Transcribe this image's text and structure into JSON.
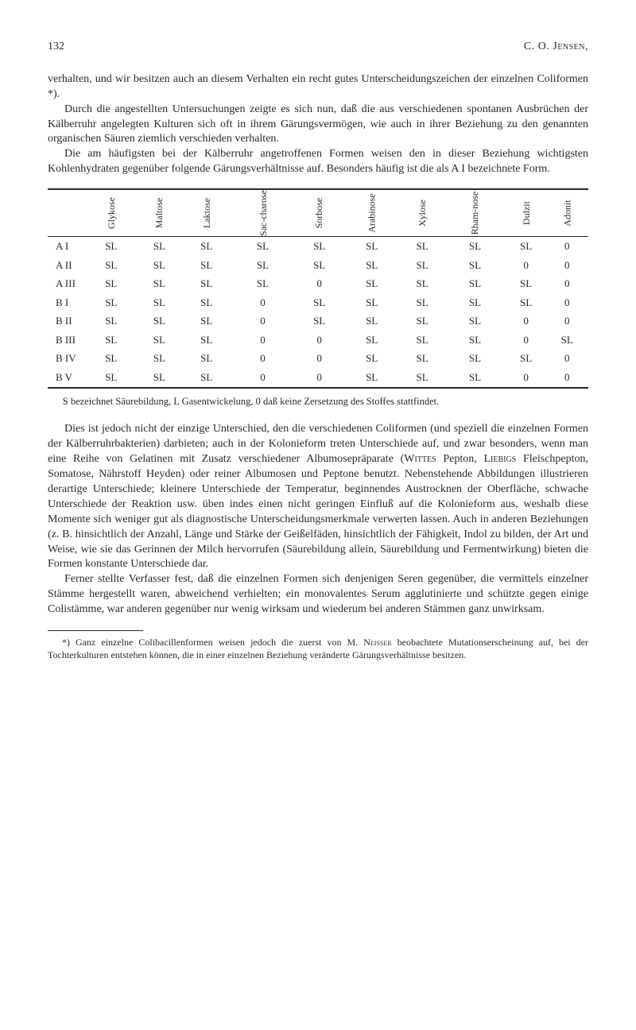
{
  "header": {
    "page_number": "132",
    "author": "C. O. Jensen,"
  },
  "para1": "verhalten, und wir besitzen auch an diesem Verhalten ein recht gutes Unterscheidungszeichen der einzelnen Coliformen *).",
  "para2": "Durch die angestellten Untersuchungen zeigte es sich nun, daß die aus verschiedenen spontanen Ausbrüchen der Kälberruhr angelegten Kulturen sich oft in ihrem Gärungsvermögen, wie auch in ihrer Beziehung zu den genannten organischen Säuren ziemlich verschieden verhalten.",
  "para3": "Die am häufigsten bei der Kälberruhr angetroffenen Formen weisen den in dieser Beziehung wichtigsten Kohlenhydraten gegenüber folgende Gärungsverhältnisse auf. Besonders häufig ist die als A I bezeichnete Form.",
  "table": {
    "columns": [
      "Glykose",
      "Maltose",
      "Laktose",
      "Sac-charose",
      "Sorbose",
      "Arabinose",
      "Xylose",
      "Rham-nose",
      "Dulzit",
      "Adonit"
    ],
    "rows": [
      {
        "label": "A I",
        "cells": [
          "SL",
          "SL",
          "SL",
          "SL",
          "SL",
          "SL",
          "SL",
          "SL",
          "SL",
          "0"
        ]
      },
      {
        "label": "A II",
        "cells": [
          "SL",
          "SL",
          "SL",
          "SL",
          "SL",
          "SL",
          "SL",
          "SL",
          "0",
          "0"
        ]
      },
      {
        "label": "A III",
        "cells": [
          "SL",
          "SL",
          "SL",
          "SL",
          "0",
          "SL",
          "SL",
          "SL",
          "SL",
          "0"
        ]
      },
      {
        "label": "B I",
        "cells": [
          "SL",
          "SL",
          "SL",
          "0",
          "SL",
          "SL",
          "SL",
          "SL",
          "SL",
          "0"
        ]
      },
      {
        "label": "B II",
        "cells": [
          "SL",
          "SL",
          "SL",
          "0",
          "SL",
          "SL",
          "SL",
          "SL",
          "0",
          "0"
        ]
      },
      {
        "label": "B III",
        "cells": [
          "SL",
          "SL",
          "SL",
          "0",
          "0",
          "SL",
          "SL",
          "SL",
          "0",
          "SL"
        ]
      },
      {
        "label": "B IV",
        "cells": [
          "SL",
          "SL",
          "SL",
          "0",
          "0",
          "SL",
          "SL",
          "SL",
          "SL",
          "0"
        ]
      },
      {
        "label": "B V",
        "cells": [
          "SL",
          "SL",
          "SL",
          "0",
          "0",
          "SL",
          "SL",
          "SL",
          "0",
          "0"
        ]
      }
    ]
  },
  "table_note": "S bezeichnet Säurebildung, L Gasentwickelung, 0 daß keine Zersetzung des Stoffes stattfindet.",
  "para4a": "Dies ist jedoch nicht der einzige Unterschied, den die verschiedenen Coliformen (und speziell die einzelnen Formen der Kälberruhrbakterien) darbieten; auch in der Kolonieform treten Unterschiede auf, und zwar besonders, wenn man eine Reihe von Gelatinen mit Zusatz verschiedener Albumosepräparate (",
  "wittes": "Wittes",
  "para4b": " Pepton, ",
  "liebigs": "Liebigs",
  "para4c": " Fleischpepton, Somatose, Nährstoff Heyden) oder reiner Albumosen und Peptone benutzt. Nebenstehende Abbildungen illustrieren derartige Unterschiede; kleinere Unterschiede der Temperatur, beginnendes Austrocknen der Oberfläche, schwache Unterschiede der Reaktion usw. üben indes einen nicht geringen Einfluß auf die Kolonieform aus, weshalb diese Momente sich weniger gut als diagnostische Unterscheidungsmerkmale verwerten lassen. Auch in anderen Beziehungen (z. B. hinsichtlich der Anzahl, Länge und Stärke der Geißelfäden, hinsichtlich der Fähigkeit, Indol zu bilden, der Art und Weise, wie sie das Gerinnen der Milch hervorrufen (Säurebildung allein, Säurebildung und Fermentwirkung) bieten die Formen konstante Unterschiede dar.",
  "para5": "Ferner stellte Verfasser fest, daß die einzelnen Formen sich denjenigen Seren gegenüber, die vermittels einzelner Stämme hergestellt waren, abweichend verhielten; ein monovalentes Serum agglutinierte und schützte gegen einige Colistämme, war anderen gegenüber nur wenig wirksam und wiederum bei anderen Stämmen ganz unwirksam.",
  "footnote_a": "*) Ganz einzelne Colibacillenformen weisen jedoch die zuerst von M. ",
  "neisser": "Neisser",
  "footnote_b": " beobachtete Mutationserscheinung auf, bei der Tochterkulturen entstehen können, die in einer einzelnen Beziehung veränderte Gärungsverhältnisse besitzen."
}
